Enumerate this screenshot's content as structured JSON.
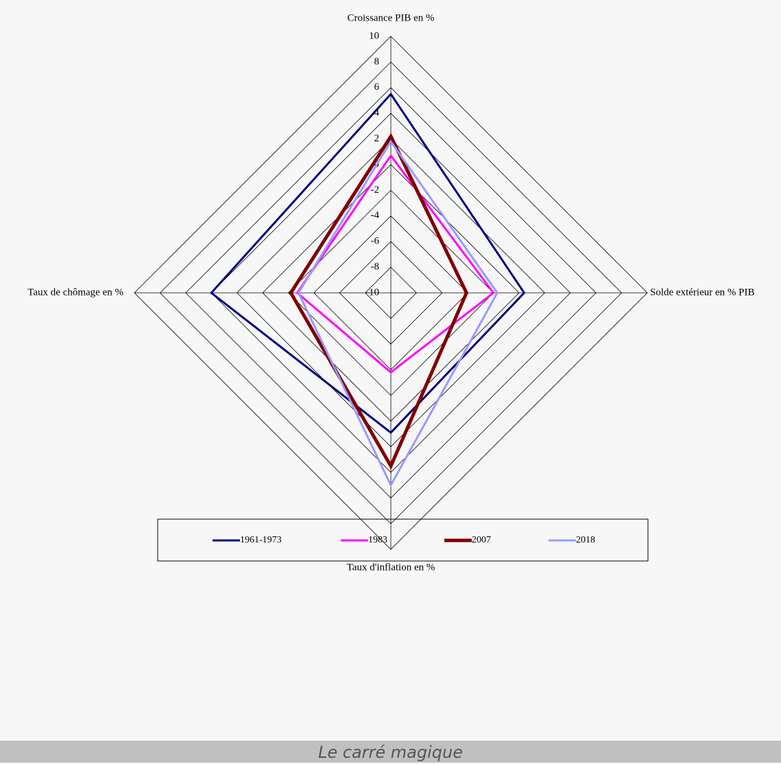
{
  "chart_data": {
    "type": "radar",
    "categories": [
      "Croissance PIB en %",
      "Solde extérieur en % PIB",
      "Taux d'inflation en %",
      "Taux de chômage en %"
    ],
    "series": [
      {
        "name": "1961-1973",
        "color": "#000080",
        "values": [
          5.5,
          0.4,
          0.9,
          4.0
        ]
      },
      {
        "name": "1983",
        "color": "#ff00ff",
        "values": [
          0.7,
          -2.0,
          -3.8,
          -2.7
        ]
      },
      {
        "name": "2007",
        "color": "#800000",
        "values": [
          2.2,
          -4.1,
          3.5,
          -2.2
        ]
      },
      {
        "name": "2018",
        "color": "#9999ff",
        "values": [
          1.8,
          -1.7,
          5.0,
          -2.8
        ]
      }
    ],
    "rlim": [
      -10,
      10
    ],
    "rticks": [
      -10,
      -8,
      -6,
      -4,
      -2,
      0,
      2,
      4,
      6,
      8,
      10
    ],
    "legend": "bottom"
  },
  "caption": "Le carré magique"
}
